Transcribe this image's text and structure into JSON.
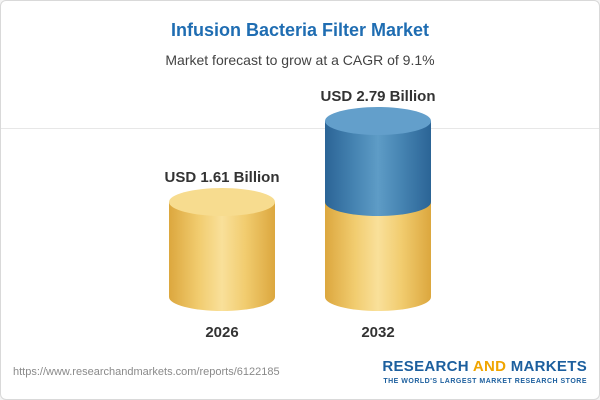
{
  "header": {
    "title": "Infusion Bacteria Filter Market",
    "subtitle": "Market forecast to grow at a CAGR of 9.1%"
  },
  "chart_data": {
    "type": "bar",
    "variant": "cylinder",
    "title": "Infusion Bacteria Filter Market",
    "subtitle": "Market forecast to grow at a CAGR of 9.1%",
    "cagr_percent": 9.1,
    "categories": [
      "2026",
      "2032"
    ],
    "values": [
      1.61,
      2.79
    ],
    "value_labels": [
      "USD 1.61 Billion",
      "USD 2.79 Billion"
    ],
    "unit": "USD Billion",
    "ylim": [
      0,
      3
    ],
    "legend_position": "none",
    "grid": "single faint top gridline",
    "colors": {
      "bar_2026": "#F0C75E",
      "bar_2032_segment_top": "#4A89B8",
      "bar_2032_segment_bottom": "#F0C75E",
      "title_text": "#1F6DB2",
      "label_text": "#333333"
    }
  },
  "footer": {
    "url": "https://www.researchandmarkets.com/reports/6122185",
    "logo": {
      "word_research": "RESEARCH",
      "word_and": "AND",
      "word_markets": "MARKETS",
      "tagline": "THE WORLD'S LARGEST MARKET RESEARCH STORE"
    }
  }
}
